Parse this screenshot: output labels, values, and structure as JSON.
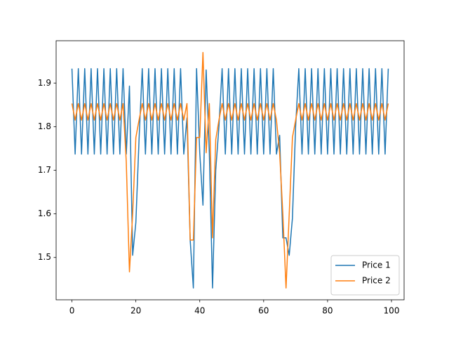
{
  "chart_data": {
    "type": "line",
    "x": [
      0,
      1,
      2,
      3,
      4,
      5,
      6,
      7,
      8,
      9,
      10,
      11,
      12,
      13,
      14,
      15,
      16,
      17,
      18,
      19,
      20,
      21,
      22,
      23,
      24,
      25,
      26,
      27,
      28,
      29,
      30,
      31,
      32,
      33,
      34,
      35,
      36,
      37,
      38,
      39,
      40,
      41,
      42,
      43,
      44,
      45,
      46,
      47,
      48,
      49,
      50,
      51,
      52,
      53,
      54,
      55,
      56,
      57,
      58,
      59,
      60,
      61,
      62,
      63,
      64,
      65,
      66,
      67,
      68,
      69,
      70,
      71,
      72,
      73,
      74,
      75,
      76,
      77,
      78,
      79,
      80,
      81,
      82,
      83,
      84,
      85,
      86,
      87,
      88,
      89,
      90,
      91,
      92,
      93,
      94,
      95,
      96,
      97,
      98,
      99
    ],
    "series": [
      {
        "name": "Price 1",
        "color": "#1f77b4",
        "values": [
          1.933,
          1.737,
          1.933,
          1.737,
          1.933,
          1.737,
          1.933,
          1.737,
          1.933,
          1.737,
          1.933,
          1.737,
          1.933,
          1.737,
          1.933,
          1.737,
          1.933,
          1.737,
          1.893,
          1.505,
          1.58,
          1.77,
          1.933,
          1.737,
          1.933,
          1.737,
          1.933,
          1.737,
          1.933,
          1.737,
          1.933,
          1.737,
          1.933,
          1.737,
          1.933,
          1.737,
          1.82,
          1.54,
          1.43,
          1.933,
          1.74,
          1.62,
          1.93,
          1.74,
          1.43,
          1.7,
          1.8,
          1.933,
          1.737,
          1.933,
          1.737,
          1.933,
          1.737,
          1.933,
          1.737,
          1.933,
          1.737,
          1.933,
          1.737,
          1.933,
          1.737,
          1.933,
          1.737,
          1.933,
          1.737,
          1.78,
          1.545,
          1.545,
          1.505,
          1.59,
          1.8,
          1.933,
          1.737,
          1.933,
          1.737,
          1.933,
          1.737,
          1.933,
          1.737,
          1.933,
          1.737,
          1.933,
          1.737,
          1.933,
          1.737,
          1.933,
          1.737,
          1.933,
          1.737,
          1.933,
          1.737,
          1.933,
          1.737,
          1.933,
          1.737,
          1.933,
          1.737,
          1.933,
          1.737,
          1.933
        ]
      },
      {
        "name": "Price 2",
        "color": "#ff7f0e",
        "values": [
          1.853,
          1.815,
          1.853,
          1.815,
          1.853,
          1.815,
          1.853,
          1.815,
          1.853,
          1.815,
          1.853,
          1.815,
          1.853,
          1.815,
          1.853,
          1.815,
          1.853,
          1.72,
          1.467,
          1.6,
          1.775,
          1.815,
          1.853,
          1.815,
          1.853,
          1.815,
          1.853,
          1.815,
          1.853,
          1.815,
          1.853,
          1.815,
          1.853,
          1.815,
          1.853,
          1.815,
          1.853,
          1.54,
          1.54,
          1.775,
          1.775,
          1.97,
          1.74,
          1.853,
          1.545,
          1.77,
          1.815,
          1.853,
          1.815,
          1.853,
          1.815,
          1.853,
          1.815,
          1.853,
          1.815,
          1.853,
          1.815,
          1.853,
          1.815,
          1.853,
          1.815,
          1.853,
          1.815,
          1.853,
          1.815,
          1.74,
          1.6,
          1.43,
          1.6,
          1.775,
          1.815,
          1.853,
          1.815,
          1.853,
          1.815,
          1.853,
          1.815,
          1.853,
          1.815,
          1.853,
          1.815,
          1.853,
          1.815,
          1.853,
          1.815,
          1.853,
          1.815,
          1.853,
          1.815,
          1.853,
          1.815,
          1.853,
          1.815,
          1.853,
          1.815,
          1.853,
          1.815,
          1.853,
          1.815,
          1.853
        ]
      }
    ],
    "xlim": [
      -4.95,
      103.95
    ],
    "xticks": [
      0,
      20,
      40,
      60,
      80,
      100
    ],
    "ylim": [
      1.403,
      1.997
    ],
    "yticks": [
      1.5,
      1.6,
      1.7,
      1.8,
      1.9
    ],
    "grid": false,
    "legend": "lower right"
  }
}
